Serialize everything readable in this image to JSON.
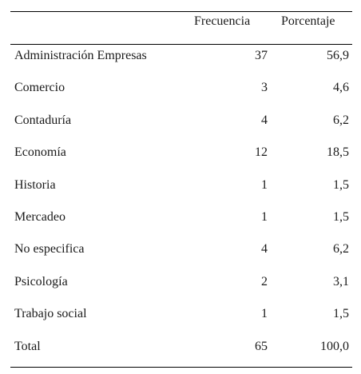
{
  "table": {
    "headers": {
      "frequency": "Frecuencia",
      "percentage": "Porcentaje"
    },
    "rows": [
      {
        "label": "Administración Empresas",
        "frequency": "37",
        "percentage": "56,9"
      },
      {
        "label": "Comercio",
        "frequency": "3",
        "percentage": "4,6"
      },
      {
        "label": "Contaduría",
        "frequency": "4",
        "percentage": "6,2"
      },
      {
        "label": "Economía",
        "frequency": "12",
        "percentage": "18,5"
      },
      {
        "label": "Historia",
        "frequency": "1",
        "percentage": "1,5"
      },
      {
        "label": "Mercadeo",
        "frequency": "1",
        "percentage": "1,5"
      },
      {
        "label": "No especifica",
        "frequency": "4",
        "percentage": "6,2"
      },
      {
        "label": "Psicología",
        "frequency": "2",
        "percentage": "3,1"
      },
      {
        "label": "Trabajo social",
        "frequency": "1",
        "percentage": "1,5"
      },
      {
        "label": "Total",
        "frequency": "65",
        "percentage": "100,0"
      }
    ]
  }
}
